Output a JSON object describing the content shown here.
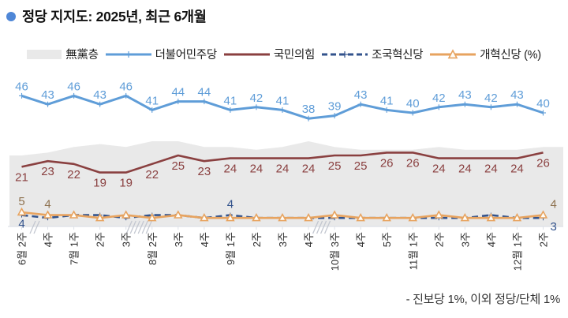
{
  "title": "정당 지지도: 2025년, 최근 6개월",
  "footnote": "- 진보당 1%, 이외 정당/단체 1%",
  "legend": {
    "items": [
      {
        "label": "無黨층"
      },
      {
        "label": "더불어민주당"
      },
      {
        "label": "국민의힘"
      },
      {
        "label": "조국혁신당"
      },
      {
        "label": "개혁신당 (%)"
      }
    ]
  },
  "colors": {
    "title_bullet": "#4f87d7",
    "nonpartisan_area": "#e9e9e9",
    "minjoo_blue": "#5f9dd8",
    "ppp_red": "#8a4040",
    "jokuk_navy": "#33538c",
    "reform_orange": "#e7a35f",
    "axis": "#dde1e8"
  },
  "chart_data": {
    "type": "line",
    "title": "정당 지지도: 2025년, 최근 6개월",
    "unit": "%",
    "ylim": [
      0,
      50
    ],
    "grid": false,
    "legend_position": "top",
    "categories": [
      "6월 2주",
      "4주",
      "7월 1주",
      "2주",
      "3주",
      "8월 2주",
      "3주",
      "4주",
      "9월 1주",
      "2주",
      "3주",
      "4주",
      "10월 3주",
      "4주",
      "5주",
      "11월 1주",
      "2주",
      "3주",
      "4주",
      "12월 1주",
      "2주"
    ],
    "axis_breaks": [
      {
        "after_index": 0,
        "strokes": 2
      },
      {
        "after_index": 4,
        "strokes": 6
      },
      {
        "after_index": 11,
        "strokes": 4
      }
    ],
    "series": [
      {
        "name": "無黨층",
        "kind": "area",
        "legend_marker": "swatch",
        "color": "#e9e9e9",
        "values_estimated": true,
        "values": [
          25,
          26,
          28,
          29,
          28,
          30,
          30,
          28,
          28,
          27,
          28,
          30,
          28,
          27,
          27,
          27,
          28,
          27,
          27,
          27,
          28
        ]
      },
      {
        "name": "더불어민주당",
        "kind": "line",
        "legend_marker": "line-plus",
        "color": "#5f9dd8",
        "marker": "plus",
        "labels": "all",
        "values": [
          46,
          43,
          46,
          43,
          46,
          41,
          44,
          44,
          41,
          42,
          41,
          38,
          39,
          43,
          41,
          40,
          42,
          43,
          42,
          43,
          40
        ]
      },
      {
        "name": "국민의힘",
        "kind": "line",
        "legend_marker": "line",
        "color": "#8a4040",
        "labels": "below",
        "values": [
          21,
          23,
          22,
          19,
          19,
          22,
          25,
          23,
          24,
          24,
          24,
          24,
          25,
          25,
          26,
          26,
          24,
          24,
          24,
          24,
          26
        ]
      },
      {
        "name": "조국혁신당",
        "kind": "line",
        "legend_marker": "dash-plus",
        "color": "#33538c",
        "dashed": true,
        "marker": "plus",
        "label_color": "#33538c",
        "values_estimated": true,
        "values": [
          4,
          3,
          4,
          4,
          3,
          4,
          4,
          3,
          4,
          3,
          3,
          3,
          3,
          3,
          3,
          3,
          3,
          3,
          4,
          3,
          3
        ],
        "labeled_points": [
          {
            "index": 0,
            "value": 4,
            "position": "below"
          },
          {
            "index": 8,
            "value": 4,
            "position": "above"
          },
          {
            "index": 20,
            "value": 3,
            "position": "below"
          }
        ]
      },
      {
        "name": "개혁신당",
        "kind": "line",
        "legend_marker": "line-triangle",
        "color": "#e7a35f",
        "marker": "triangle",
        "label_color": "#8f7351",
        "values_estimated": true,
        "values": [
          5,
          4,
          4,
          3,
          4,
          3,
          4,
          3,
          3,
          3,
          3,
          3,
          4,
          3,
          3,
          3,
          4,
          3,
          3,
          3,
          4
        ],
        "labeled_points": [
          {
            "index": 0,
            "value": 5,
            "position": "above"
          },
          {
            "index": 1,
            "value": 4,
            "position": "above"
          },
          {
            "index": 20,
            "value": 4,
            "position": "above"
          }
        ]
      }
    ],
    "note": "- 진보당 1%, 이외 정당/단체 1%"
  }
}
